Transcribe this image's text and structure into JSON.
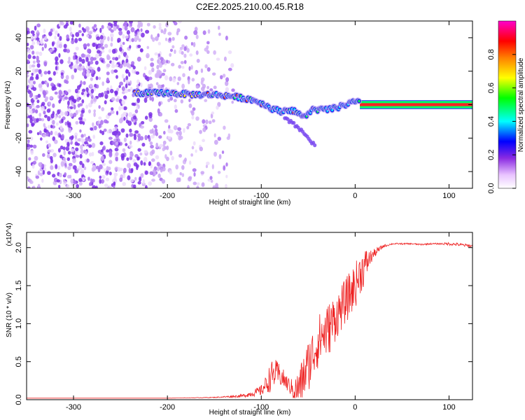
{
  "title": "C2E2.2025.210.00.45.R18",
  "chart_data": [
    {
      "type": "heatmap",
      "xlabel": "Height of straight line (km)",
      "ylabel": "Frequency (Hz)",
      "xlim": [
        -350,
        125
      ],
      "ylim": [
        -50,
        50
      ],
      "xticks": [
        -300,
        -200,
        -100,
        0,
        100
      ],
      "yticks": [
        -40,
        -20,
        0,
        20,
        40
      ],
      "colorbar": {
        "label": "Normalized spectral amplitude",
        "range": [
          0,
          1
        ],
        "ticks": [
          "0.0",
          "0.2",
          "0.4",
          "0.6",
          "0.8"
        ],
        "colors": [
          "#ffffff",
          "#e9c4ff",
          "#8a2be2",
          "#0000ff",
          "#00ffff",
          "#00ff00",
          "#ffff00",
          "#ff8000",
          "#ff0000",
          "#ff00cc"
        ]
      },
      "noise_region": {
        "x_range": [
          -350,
          -130
        ],
        "y_range": [
          -50,
          50
        ]
      },
      "carrier_track": [
        {
          "x": -235,
          "y": 7
        },
        {
          "x": -200,
          "y": 7
        },
        {
          "x": -170,
          "y": 6
        },
        {
          "x": -150,
          "y": 6
        },
        {
          "x": -130,
          "y": 5
        },
        {
          "x": -110,
          "y": 3
        },
        {
          "x": -100,
          "y": 1
        },
        {
          "x": -90,
          "y": -2
        },
        {
          "x": -80,
          "y": -4
        },
        {
          "x": -70,
          "y": -3
        },
        {
          "x": -60,
          "y": -5
        },
        {
          "x": -55,
          "y": -8
        },
        {
          "x": -50,
          "y": -5
        },
        {
          "x": -45,
          "y": -3
        },
        {
          "x": -30,
          "y": -3
        },
        {
          "x": -20,
          "y": -2
        },
        {
          "x": -10,
          "y": 0
        },
        {
          "x": 0,
          "y": 2
        },
        {
          "x": 5,
          "y": 1
        },
        {
          "x": 40,
          "y": 0
        },
        {
          "x": 80,
          "y": 0
        },
        {
          "x": 125,
          "y": 0
        }
      ],
      "track_branch": [
        {
          "x": -75,
          "y": -8
        },
        {
          "x": -60,
          "y": -14
        },
        {
          "x": -50,
          "y": -20
        },
        {
          "x": -42,
          "y": -25
        }
      ]
    },
    {
      "type": "line",
      "xlabel": "Height of straight line (km)",
      "ylabel": "SNR (10 * v/v)",
      "y_multiplier": "(x10^4)",
      "xlim": [
        -350,
        125
      ],
      "ylim": [
        0,
        2.2
      ],
      "xticks": [
        -300,
        -200,
        -100,
        0,
        100
      ],
      "yticks": [
        "0.0",
        "0.5",
        "1.0",
        "1.5",
        "2.0"
      ],
      "series": [
        {
          "color": "#ee2222",
          "x": [
            -350,
            -300,
            -250,
            -200,
            -150,
            -120,
            -110,
            -100,
            -95,
            -90,
            -85,
            -80,
            -75,
            -70,
            -65,
            -60,
            -55,
            -50,
            -45,
            -40,
            -35,
            -30,
            -25,
            -20,
            -15,
            -10,
            -5,
            0,
            5,
            10,
            15,
            20,
            25,
            30,
            40,
            50,
            60,
            70,
            80,
            90,
            100,
            110,
            125
          ],
          "y": [
            0.02,
            0.02,
            0.02,
            0.02,
            0.03,
            0.05,
            0.08,
            0.12,
            0.2,
            0.3,
            0.35,
            0.32,
            0.25,
            0.18,
            0.12,
            0.15,
            0.3,
            0.45,
            0.6,
            0.75,
            0.85,
            0.9,
            1.0,
            1.1,
            1.2,
            1.3,
            1.4,
            1.5,
            1.65,
            1.75,
            1.85,
            1.92,
            1.97,
            2.02,
            2.05,
            2.05,
            2.05,
            2.04,
            2.05,
            2.05,
            2.05,
            2.04,
            2.02
          ],
          "noise": [
            0,
            0,
            0,
            0,
            0.005,
            0.02,
            0.04,
            0.07,
            0.12,
            0.2,
            0.18,
            0.15,
            0.12,
            0.1,
            0.15,
            0.25,
            0.3,
            0.35,
            0.35,
            0.35,
            0.35,
            0.35,
            0.35,
            0.3,
            0.3,
            0.3,
            0.3,
            0.3,
            0.28,
            0.25,
            0.12,
            0.06,
            0.04,
            0.02,
            0.01,
            0.01,
            0.01,
            0.01,
            0.01,
            0.01,
            0.02,
            0.02,
            0.02
          ]
        }
      ]
    }
  ]
}
